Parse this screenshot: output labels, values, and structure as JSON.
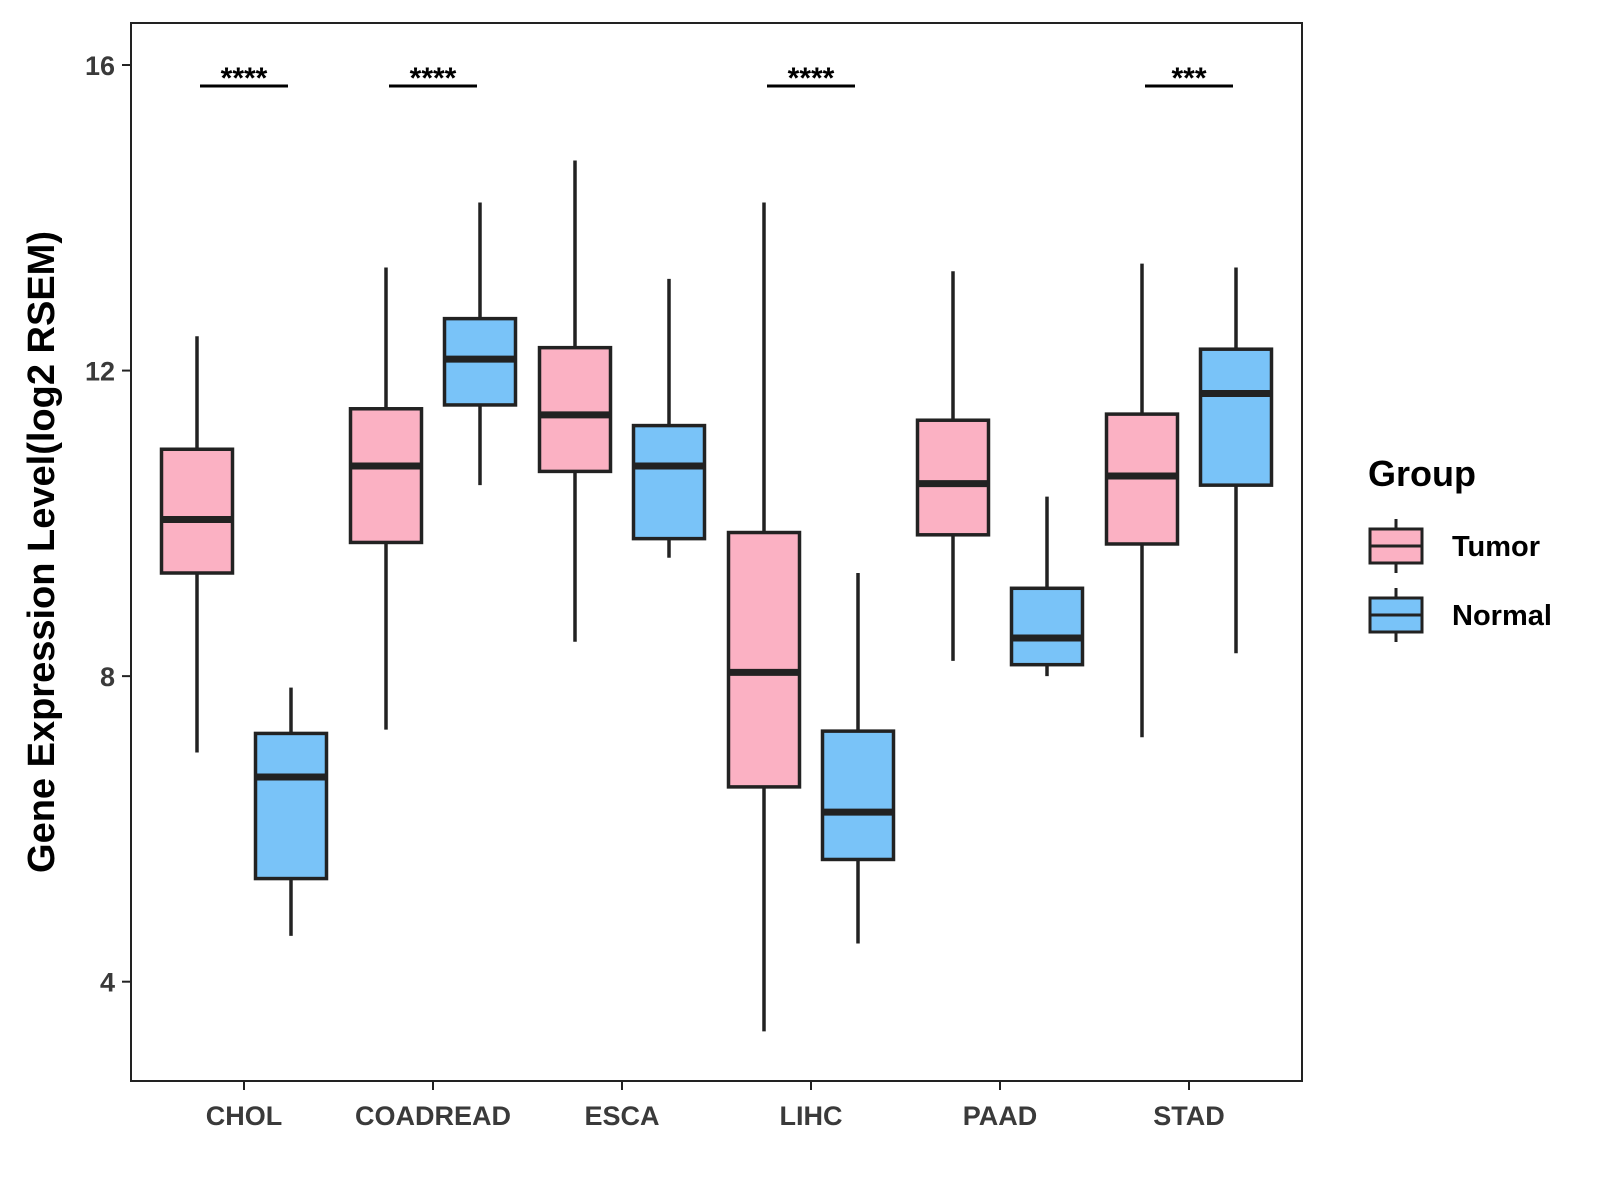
{
  "chart_data": {
    "type": "boxplot",
    "title": "",
    "xlabel": "",
    "ylabel": "Gene Expression Level(log2 RSEM)",
    "ylim": [
      2.7,
      16.55
    ],
    "yticks": [
      4,
      8,
      12,
      16
    ],
    "grid": false,
    "legend_title": "Group",
    "legend_position": "right",
    "categories": [
      "CHOL",
      "COADREAD",
      "ESCA",
      "LIHC",
      "PAAD",
      "STAD"
    ],
    "series": [
      {
        "name": "Tumor",
        "color": "#FBB1C3",
        "boxes": [
          {
            "whisker_low": 7.0,
            "q1": 9.35,
            "median": 10.05,
            "q3": 10.97,
            "whisker_high": 12.45
          },
          {
            "whisker_low": 7.3,
            "q1": 9.75,
            "median": 10.75,
            "q3": 11.5,
            "whisker_high": 13.35
          },
          {
            "whisker_low": 8.45,
            "q1": 10.68,
            "median": 11.42,
            "q3": 12.3,
            "whisker_high": 14.75
          },
          {
            "whisker_low": 3.35,
            "q1": 6.55,
            "median": 8.05,
            "q3": 9.88,
            "whisker_high": 14.2
          },
          {
            "whisker_low": 8.2,
            "q1": 9.85,
            "median": 10.52,
            "q3": 11.35,
            "whisker_high": 13.3
          },
          {
            "whisker_low": 7.2,
            "q1": 9.73,
            "median": 10.62,
            "q3": 11.43,
            "whisker_high": 13.4
          }
        ]
      },
      {
        "name": "Normal",
        "color": "#79C3F8",
        "boxes": [
          {
            "whisker_low": 4.6,
            "q1": 5.35,
            "median": 6.68,
            "q3": 7.25,
            "whisker_high": 7.85
          },
          {
            "whisker_low": 10.5,
            "q1": 11.55,
            "median": 12.15,
            "q3": 12.68,
            "whisker_high": 14.2
          },
          {
            "whisker_low": 9.55,
            "q1": 9.8,
            "median": 10.75,
            "q3": 11.28,
            "whisker_high": 13.2
          },
          {
            "whisker_low": 4.5,
            "q1": 5.6,
            "median": 6.22,
            "q3": 7.28,
            "whisker_high": 9.35
          },
          {
            "whisker_low": 8.0,
            "q1": 8.15,
            "median": 8.5,
            "q3": 9.15,
            "whisker_high": 10.35
          },
          {
            "whisker_low": 8.3,
            "q1": 10.5,
            "median": 11.7,
            "q3": 12.28,
            "whisker_high": 13.35
          }
        ]
      }
    ],
    "significance": [
      {
        "category": "CHOL",
        "label": "****",
        "y": 15.87
      },
      {
        "category": "COADREAD",
        "label": "****",
        "y": 15.87
      },
      {
        "category": "LIHC",
        "label": "****",
        "y": 15.87
      },
      {
        "category": "STAD",
        "label": "***",
        "y": 15.87
      }
    ]
  }
}
